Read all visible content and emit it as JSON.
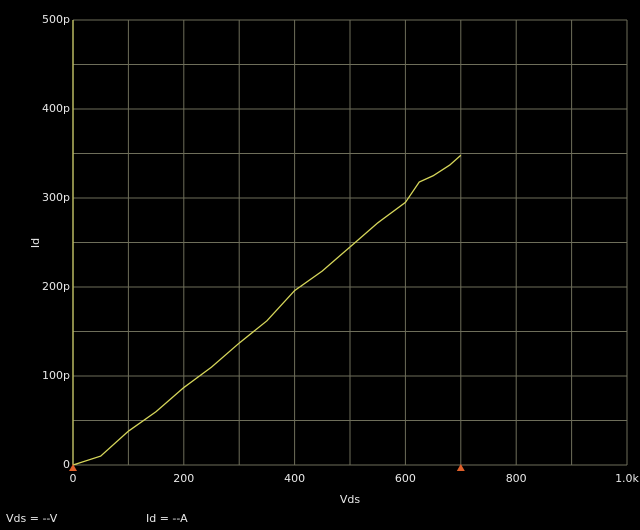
{
  "chart_data": {
    "type": "line",
    "x_label": "Vds",
    "y_label": "Id",
    "xlim": [
      0,
      1000
    ],
    "ylim": [
      0,
      500
    ],
    "xticks": [
      0,
      200,
      400,
      600,
      800,
      {
        "value": 1000,
        "label": "1.0k"
      }
    ],
    "xminorticks": [
      100,
      300,
      500,
      700,
      900
    ],
    "yticks": [
      0,
      {
        "value": 100,
        "label": "100p"
      },
      {
        "value": 200,
        "label": "200p"
      },
      {
        "value": 300,
        "label": "300p"
      },
      {
        "value": 400,
        "label": "400p"
      },
      {
        "value": 500,
        "label": "500p"
      }
    ],
    "yminorticks": [
      50,
      150,
      250,
      350,
      450
    ],
    "grid": true,
    "x": [
      0,
      50,
      100,
      150,
      200,
      250,
      300,
      350,
      400,
      450,
      500,
      550,
      600,
      625,
      650,
      680,
      700
    ],
    "series": [
      {
        "color": "#d6d65a",
        "values": [
          0,
          10,
          38,
          60,
          87,
          110,
          137,
          162,
          196,
          218,
          245,
          272,
          295,
          318,
          325,
          337,
          348
        ]
      }
    ],
    "markers": {
      "color": "#e0602a",
      "x": [
        0,
        700
      ]
    },
    "status": [
      "Vds  = --V",
      "Id  = --A"
    ]
  }
}
